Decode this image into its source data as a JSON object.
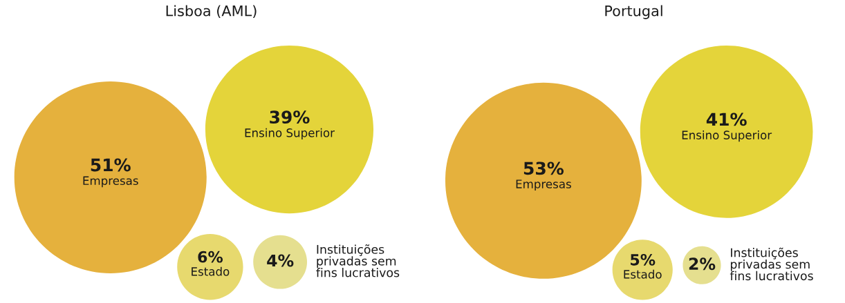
{
  "chart_data": [
    {
      "type": "other",
      "title": "Lisboa (AML)",
      "categories": [
        "Empresas",
        "Ensino Superior",
        "Estado",
        "Instituições privadas sem fins lucrativos"
      ],
      "values": [
        51,
        39,
        6,
        4
      ],
      "value_labels": [
        "51%",
        "39%",
        "6%",
        "4%"
      ],
      "colors": [
        "#e5b13d",
        "#e4d43a",
        "#e7d96e",
        "#e5df8f"
      ]
    },
    {
      "type": "other",
      "title": "Portugal",
      "categories": [
        "Empresas",
        "Ensino Superior",
        "Estado",
        "Instituições privadas sem fins lucrativos"
      ],
      "values": [
        53,
        41,
        5,
        2
      ],
      "value_labels": [
        "53%",
        "41%",
        "5%",
        "2%"
      ],
      "colors": [
        "#e5b13d",
        "#e4d43a",
        "#e7d96e",
        "#e5df8f"
      ]
    }
  ]
}
